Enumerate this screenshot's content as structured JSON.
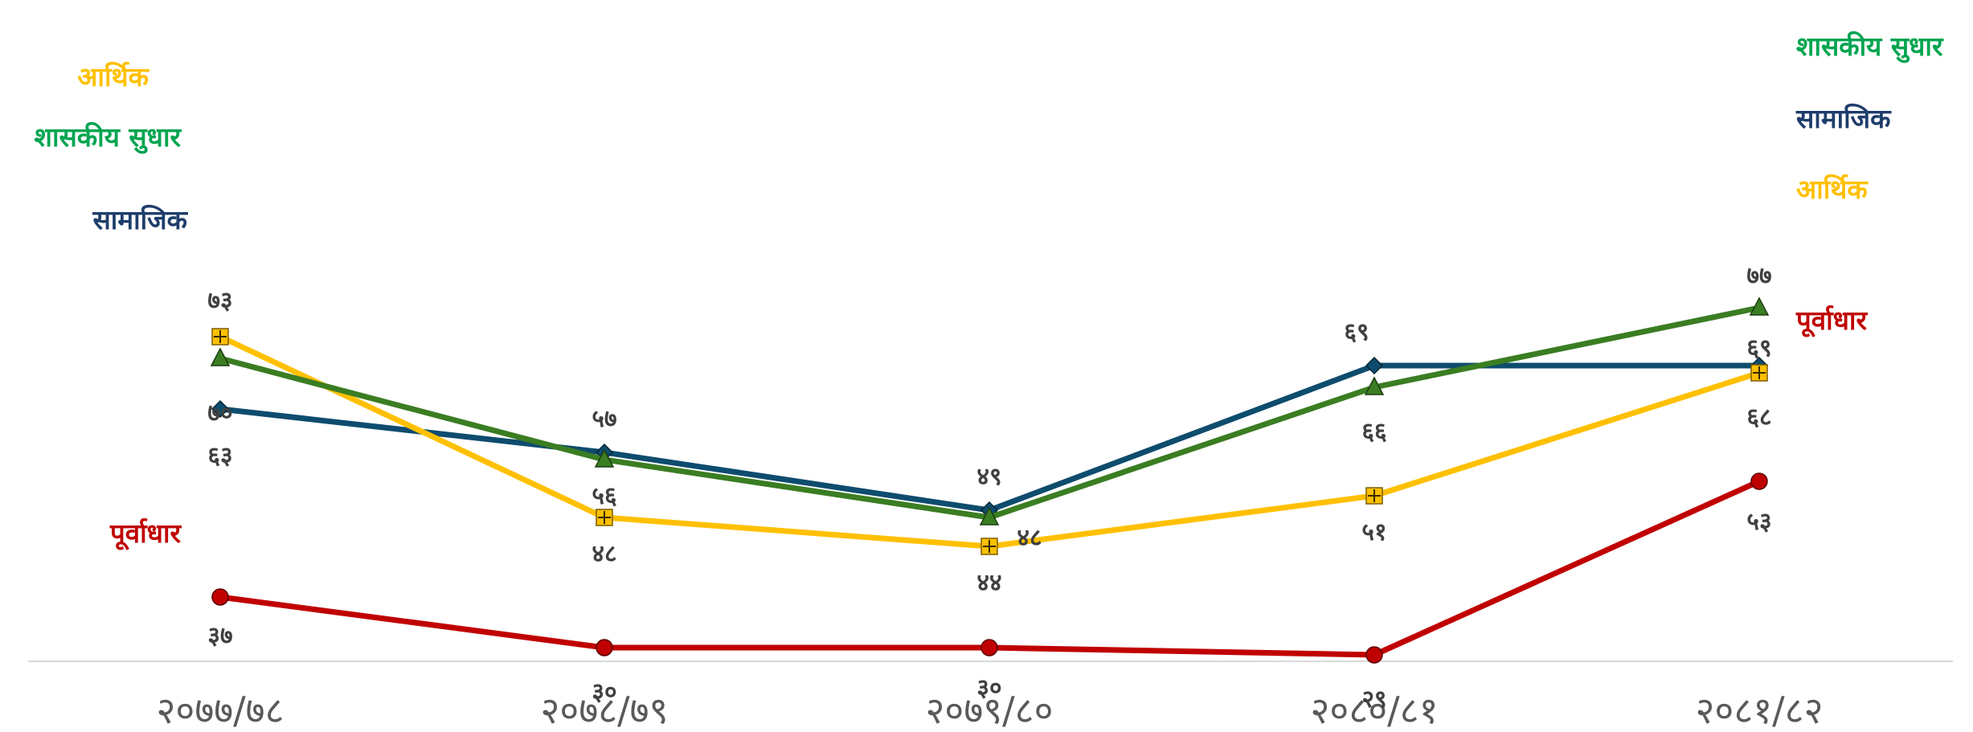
{
  "chart_data": {
    "type": "line",
    "categories": [
      "२०७७/७८",
      "२०७८/७९",
      "२०७९/८०",
      "२०८०/८१",
      "२०८१/८२"
    ],
    "ylim": [
      0,
      85
    ],
    "grid": false,
    "legend": "none",
    "series": [
      {
        "name": "आर्थिक",
        "color": "#FFC000",
        "marker": "square-plus",
        "values": [
          73,
          48,
          44,
          51,
          68
        ],
        "labels": [
          "७३",
          "४८",
          "४४",
          "५१",
          "६८"
        ]
      },
      {
        "name": "शासकीय सुधार",
        "color": "#3A7D22",
        "label_color": "#00A550",
        "marker": "triangle",
        "values": [
          70,
          56,
          48,
          66,
          77
        ],
        "labels": [
          "७०",
          "५६",
          "४८",
          "६६",
          "७७"
        ]
      },
      {
        "name": "सामाजिक",
        "color": "#0E4C6E",
        "label_color": "#1F3D6B",
        "marker": "diamond",
        "values": [
          63,
          57,
          49,
          69,
          69
        ],
        "labels": [
          "६३",
          "५७",
          "४९",
          "६९",
          "६९"
        ]
      },
      {
        "name": "पूर्वाधार",
        "color": "#C00000",
        "marker": "circle",
        "values": [
          37,
          30,
          30,
          29,
          53
        ],
        "labels": [
          "३७",
          "३०",
          "३०",
          "२९",
          "५३"
        ]
      }
    ]
  }
}
